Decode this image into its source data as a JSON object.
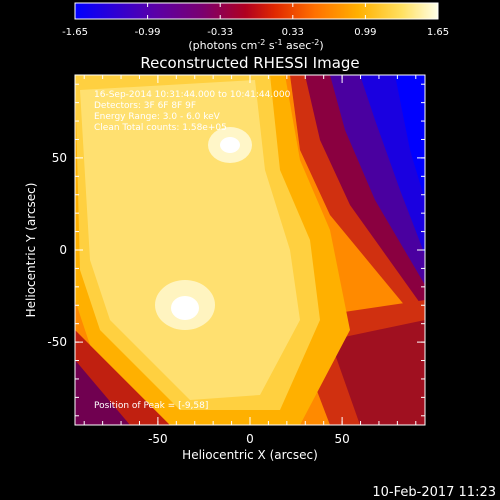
{
  "colorbar": {
    "ticks": [
      "-1.65",
      "-0.99",
      "-0.33",
      "0.33",
      "0.99",
      "1.65"
    ],
    "units_main": "(photons cm",
    "units_e1": "-2",
    "units_mid": " s",
    "units_e2": "-1",
    "units_end": " asec",
    "units_e3": "-2",
    "units_close": ")",
    "range": [
      -1.65,
      1.65
    ]
  },
  "colors": {
    "background": "#000000",
    "axis": "#ffffff",
    "colormap_stops": [
      "#0000ff",
      "#2a00c8",
      "#5000a0",
      "#7a0070",
      "#b00020",
      "#e02800",
      "#ff7000",
      "#ffb000",
      "#ffe060",
      "#ffffe0"
    ]
  },
  "chart_data": {
    "type": "heatmap",
    "title": "Reconstructed RHESSI Image",
    "xlabel": "Heliocentric X (arcsec)",
    "ylabel": "Heliocentric Y (arcsec)",
    "xlim": [
      -95,
      95
    ],
    "ylim": [
      -95,
      95
    ],
    "xticks": [
      -50,
      0,
      50
    ],
    "yticks": [
      50,
      0,
      -50
    ],
    "grid": false,
    "annotations": [
      "16-Sep-2014 10:31:44.000 to 10:41:44.000",
      "Detectors: 3F 6F 8F 9F",
      "Energy Range: 3.0 - 6.0 keV",
      "Clean  Total counts: 1.58e+05"
    ],
    "peak_label": "Position of Peak = [-9,58]",
    "peaks": [
      {
        "x": -9,
        "y": 58
      },
      {
        "x": -35,
        "y": -33
      }
    ]
  },
  "footer": {
    "timestamp": "10-Feb-2017 11:23"
  }
}
